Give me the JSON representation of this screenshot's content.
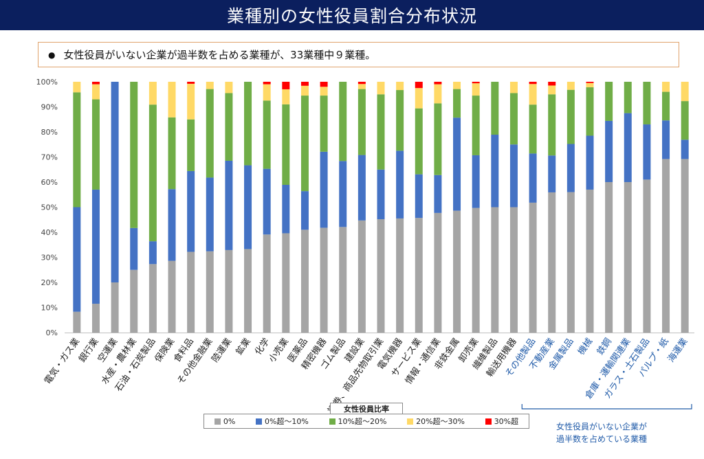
{
  "page": {
    "title": "業種別の女性役員割合分布状況",
    "note": "女性役員がいない企業が過半数を占める業種が、33業種中９業種。",
    "bracket_note_line1": "女性役員がいない企業が",
    "bracket_note_line2": "過半数を占めている業種"
  },
  "colors": {
    "title_bg": "#0b1f5e",
    "gray": "#a5a5a5",
    "blue": "#4472c4",
    "green": "#70ad47",
    "yellow": "#ffd966",
    "red": "#ff0000",
    "highlight_label": "#1f5aa8"
  },
  "chart_data": {
    "type": "bar",
    "stacked": true,
    "legend_title": "女性役員比率",
    "legend_position": "bottom",
    "ylim": [
      0,
      100
    ],
    "yticks": [
      "0%",
      "10%",
      "20%",
      "30%",
      "40%",
      "50%",
      "60%",
      "70%",
      "80%",
      "90%",
      "100%"
    ],
    "grid": false,
    "categories": [
      "電気・ガス業",
      "銀行業",
      "空運業",
      "水産・農林業",
      "石油・石炭製品",
      "保険業",
      "食料品",
      "その他金融業",
      "陸運業",
      "鉱業",
      "化学",
      "小売業",
      "医薬品",
      "精密機器",
      "ゴム製品",
      "建設業",
      "証券、商品先物取引業",
      "電気機器",
      "サービス業",
      "情報・通信業",
      "非鉄金属",
      "卸売業",
      "繊維製品",
      "輸送用機器",
      "その他製品",
      "不動産業",
      "金属製品",
      "機械",
      "鉄鋼",
      "倉庫・運輸関連業",
      "ガラス・土石製品",
      "パルプ・紙",
      "海運業"
    ],
    "highlighted_categories": [
      "その他製品",
      "不動産業",
      "金属製品",
      "機械",
      "鉄鋼",
      "倉庫・運輸関連業",
      "ガラス・土石製品",
      "パルプ・紙",
      "海運業"
    ],
    "series": [
      {
        "name": "0%",
        "color": "#a5a5a5",
        "values": [
          8.3,
          11.5,
          20,
          25,
          27.3,
          28.6,
          32.2,
          32.4,
          32.9,
          33.3,
          39.1,
          39.6,
          41,
          41.8,
          42.1,
          44.7,
          45.2,
          45.5,
          45.7,
          47.7,
          48.6,
          49.7,
          50,
          50,
          51.8,
          55.9,
          56,
          57,
          60,
          60,
          61,
          69.2,
          69.2
        ]
      },
      {
        "name": "0%超～10%",
        "color": "#4472c4",
        "values": [
          41.7,
          45.5,
          80,
          16.7,
          9.1,
          28.6,
          32.2,
          29.4,
          35.6,
          33.4,
          26.2,
          19.3,
          15.4,
          30.3,
          26.3,
          26.1,
          19.8,
          27,
          17.4,
          15.1,
          37.1,
          21,
          28.9,
          25,
          19.6,
          14.7,
          19.2,
          21.5,
          24.4,
          27.5,
          22,
          15.4,
          7.7
        ]
      },
      {
        "name": "10%超～20%",
        "color": "#70ad47",
        "values": [
          45.8,
          36,
          0,
          58.3,
          54.5,
          28.6,
          20.6,
          35.3,
          27,
          33.3,
          27.2,
          32.1,
          38.1,
          22.4,
          31.6,
          26.3,
          30,
          24.2,
          26.3,
          28.6,
          11.4,
          23.8,
          21.1,
          20.5,
          19.5,
          24.4,
          21.6,
          19.3,
          15.6,
          12.5,
          17,
          11.4,
          15.4
        ]
      },
      {
        "name": "20%超～30%",
        "color": "#ffd966",
        "values": [
          4.2,
          6,
          0,
          0,
          9.1,
          14.2,
          14.2,
          2.9,
          4.5,
          0,
          6.5,
          6,
          3.9,
          3.5,
          0,
          2,
          5,
          3.3,
          8.1,
          7.6,
          2.9,
          4.9,
          0,
          4.5,
          8.2,
          3.5,
          3.2,
          1.7,
          0,
          0,
          0,
          4,
          7.7
        ]
      },
      {
        "name": "30%超",
        "color": "#ff0000",
        "values": [
          0,
          1,
          0,
          0,
          0,
          0,
          0.8,
          0,
          0,
          0,
          1,
          3,
          1.6,
          2,
          0,
          0.9,
          0,
          0,
          2.5,
          1,
          0,
          0.6,
          0,
          0,
          0.9,
          1.5,
          0,
          0.5,
          0,
          0,
          0,
          0,
          0
        ]
      }
    ]
  }
}
